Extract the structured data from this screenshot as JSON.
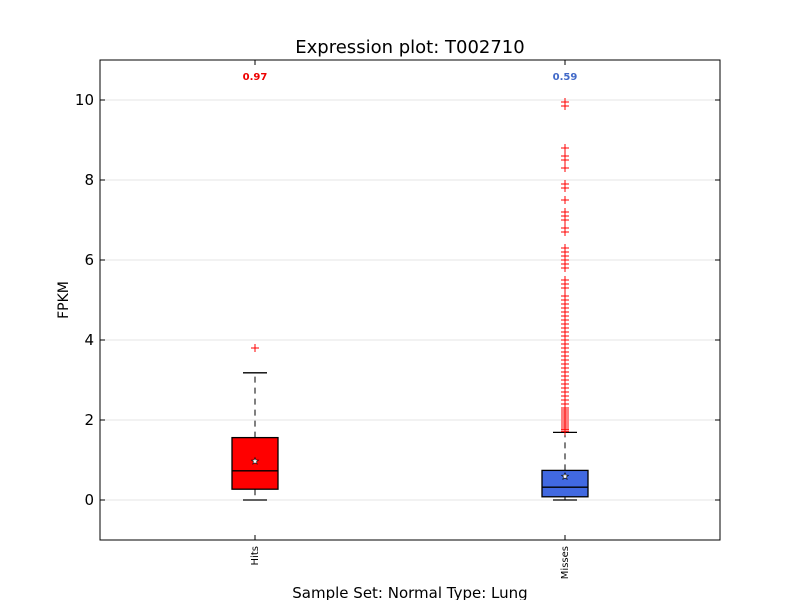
{
  "chart_data": {
    "type": "boxplot",
    "title": "Expression plot: T002710",
    "xlabel": "Sample Set: Normal Type: Lung",
    "ylabel": "FPKM",
    "ylim": [
      -1,
      11
    ],
    "yticks": [
      0,
      2,
      4,
      6,
      8,
      10
    ],
    "grid": "horizontal",
    "categories": [
      "Hits",
      "Misses"
    ],
    "series": [
      {
        "category": "Hits",
        "color": "#ff0000",
        "mean_label": "0.97",
        "mean_label_color": "#ee0000",
        "mean": 0.97,
        "q1": 0.27,
        "median": 0.73,
        "q3": 1.56,
        "whisker_low": 0.0,
        "whisker_high": 3.18,
        "outliers": [
          3.8
        ]
      },
      {
        "category": "Misses",
        "color": "#4169e1",
        "mean_label": "0.59",
        "mean_label_color": "#4169c8",
        "mean": 0.59,
        "q1": 0.08,
        "median": 0.32,
        "q3": 0.74,
        "whisker_low": 0.0,
        "whisker_high": 1.69,
        "outliers": [
          1.72,
          1.76,
          1.8,
          1.85,
          1.9,
          1.95,
          2.0,
          2.05,
          2.1,
          2.15,
          2.2,
          2.25,
          2.3,
          2.4,
          2.5,
          2.6,
          2.7,
          2.8,
          2.9,
          3.0,
          3.1,
          3.2,
          3.3,
          3.4,
          3.5,
          3.6,
          3.7,
          3.8,
          3.9,
          4.0,
          4.1,
          4.2,
          4.3,
          4.4,
          4.5,
          4.6,
          4.7,
          4.8,
          4.9,
          5.0,
          5.1,
          5.3,
          5.4,
          5.5,
          5.8,
          5.9,
          6.0,
          6.1,
          6.2,
          6.3,
          6.7,
          6.8,
          7.0,
          7.1,
          7.2,
          7.5,
          7.8,
          7.9,
          8.3,
          8.5,
          8.6,
          8.8,
          9.85,
          9.95
        ]
      }
    ]
  }
}
